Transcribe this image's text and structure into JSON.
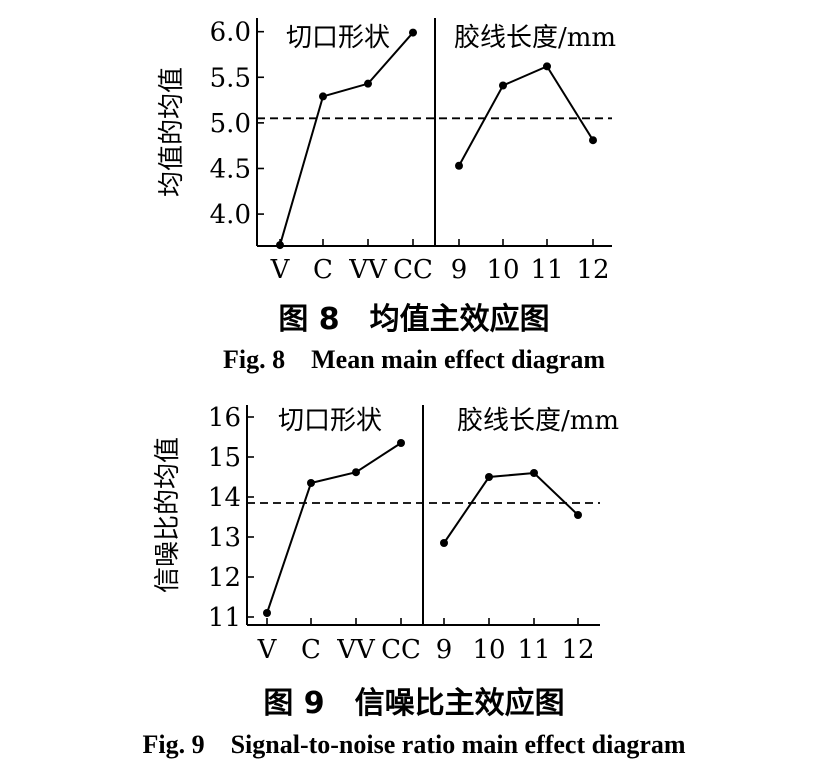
{
  "figures": [
    {
      "caption_cn": "图 8　均值主效应图",
      "caption_en": "Fig. 8　Mean main effect diagram"
    },
    {
      "caption_cn": "图 9　信噪比主效应图",
      "caption_en": "Fig. 9　Signal-to-noise ratio main effect diagram"
    }
  ],
  "chart_data": [
    {
      "type": "line",
      "ylabel": "均值的均值",
      "ylim": [
        3.65,
        6.15
      ],
      "yticks": [
        4.0,
        4.5,
        5.0,
        5.5,
        6.0
      ],
      "ytick_labels": [
        "4.0",
        "4.5",
        "5.0",
        "5.5",
        "6.0"
      ],
      "mean_line": 5.05,
      "panels": [
        {
          "title": "切口形状",
          "categories": [
            "V",
            "C",
            "VV",
            "CC"
          ],
          "values": [
            3.66,
            5.29,
            5.43,
            5.99
          ]
        },
        {
          "title": "胶线长度/mm",
          "categories": [
            "9",
            "10",
            "11",
            "12"
          ],
          "values": [
            4.53,
            5.41,
            5.62,
            4.81
          ]
        }
      ],
      "grid": false
    },
    {
      "type": "line",
      "ylabel": "信噪比的均值",
      "ylim": [
        10.8,
        16.3
      ],
      "yticks": [
        11,
        12,
        13,
        14,
        15,
        16
      ],
      "ytick_labels": [
        "11",
        "12",
        "13",
        "14",
        "15",
        "16"
      ],
      "mean_line": 13.85,
      "panels": [
        {
          "title": "切口形状",
          "categories": [
            "V",
            "C",
            "VV",
            "CC"
          ],
          "values": [
            11.1,
            14.35,
            14.62,
            15.35
          ]
        },
        {
          "title": "胶线长度/mm",
          "categories": [
            "9",
            "10",
            "11",
            "12"
          ],
          "values": [
            12.85,
            14.5,
            14.6,
            13.55
          ]
        }
      ],
      "grid": false
    }
  ]
}
